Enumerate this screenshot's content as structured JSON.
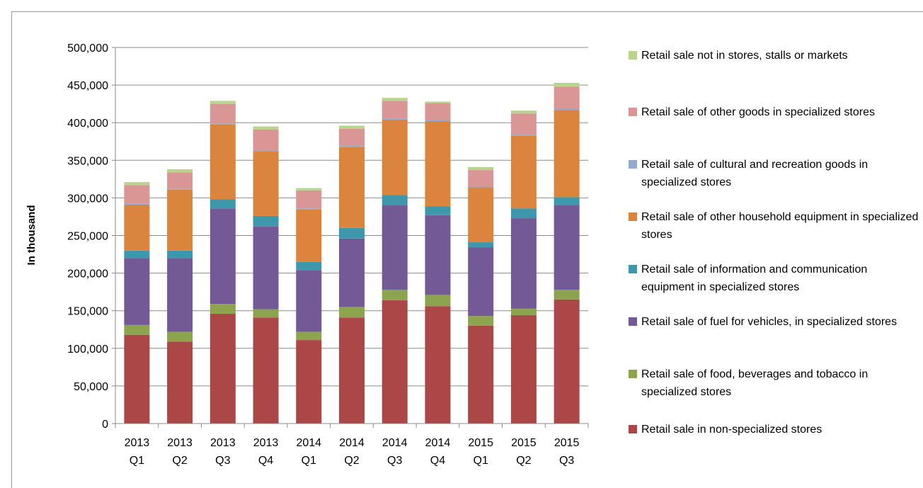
{
  "chart_data": {
    "type": "bar",
    "stacked": true,
    "title": "",
    "xlabel": "",
    "ylabel": "In thousand",
    "ylim": [
      0,
      500000
    ],
    "yticks": [
      "0",
      "50,000",
      "100,000",
      "150,000",
      "200,000",
      "250,000",
      "300,000",
      "350,000",
      "400,000",
      "450,000",
      "500,000"
    ],
    "grid": true,
    "legend_position": "right",
    "categories": [
      [
        "2013",
        "Q1"
      ],
      [
        "2013",
        "Q2"
      ],
      [
        "2013",
        "Q3"
      ],
      [
        "2013",
        "Q4"
      ],
      [
        "2014",
        "Q1"
      ],
      [
        "2014",
        "Q2"
      ],
      [
        "2014",
        "Q3"
      ],
      [
        "2014",
        "Q4"
      ],
      [
        "2015",
        "Q1"
      ],
      [
        "2015",
        "Q2"
      ],
      [
        "2015",
        "Q3"
      ]
    ],
    "series": [
      {
        "name": "Retail sale in non-specialized stores",
        "color": "#ab4746",
        "values": [
          118000,
          109000,
          146000,
          141000,
          111000,
          141000,
          164000,
          156000,
          130000,
          144000,
          165000
        ]
      },
      {
        "name": "Retail sale of food, beverages and tobacco in specialized stores",
        "color": "#8ca44d",
        "values": [
          13000,
          13000,
          13000,
          11000,
          11000,
          14000,
          14000,
          15000,
          13000,
          9000,
          13000
        ]
      },
      {
        "name": "Retail sale of fuel for vehicles, in specialized stores",
        "color": "#735996",
        "values": [
          89000,
          98000,
          127000,
          110000,
          82000,
          91000,
          112000,
          106000,
          91000,
          120000,
          112000
        ]
      },
      {
        "name": "Retail sale of information and communication equipment in specialized stores",
        "color": "#3f97ab",
        "values": [
          10000,
          10000,
          12000,
          14000,
          11000,
          14000,
          14000,
          12000,
          7000,
          13000,
          11000
        ]
      },
      {
        "name": "Retail sale of other household equipment in specialized stores",
        "color": "#db843d",
        "values": [
          61000,
          81000,
          100000,
          86000,
          70000,
          108000,
          100000,
          113000,
          73000,
          97000,
          116000
        ]
      },
      {
        "name": "Retail sale of cultural and recreation goods in specialized stores",
        "color": "#93a9cf",
        "values": [
          1000,
          1000,
          1000,
          1000,
          1000,
          1000,
          1000,
          1000,
          1000,
          1000,
          2000
        ]
      },
      {
        "name": "Retail sale of other goods in specialized stores",
        "color": "#d99694",
        "values": [
          25000,
          22000,
          26000,
          28000,
          24000,
          23000,
          24000,
          23000,
          22000,
          28000,
          29000
        ]
      },
      {
        "name": "Retail sale not in stores, stalls or markets",
        "color": "#b9d48b",
        "values": [
          4000,
          4000,
          4000,
          4000,
          3000,
          4000,
          4000,
          2000,
          4000,
          4000,
          5000
        ]
      }
    ],
    "legend_order": [
      {
        "label": "Retail sale not in stores, stalls or markets",
        "color": "#b9d48b"
      },
      {
        "label": "Retail sale of other goods in specialized stores",
        "color": "#d99694"
      },
      {
        "label": "Retail sale of cultural and recreation goods in specialized stores",
        "color": "#93a9cf"
      },
      {
        "label": "Retail sale of other household equipment in specialized stores",
        "color": "#db843d"
      },
      {
        "label": "Retail sale of information and communication equipment in specialized stores",
        "color": "#3f97ab"
      },
      {
        "label": "Retail sale of fuel for vehicles, in specialized stores",
        "color": "#735996"
      },
      {
        "label": "Retail sale of food, beverages and tobacco in specialized stores",
        "color": "#8ca44d"
      },
      {
        "label": "Retail sale in non-specialized stores",
        "color": "#ab4746"
      }
    ]
  }
}
